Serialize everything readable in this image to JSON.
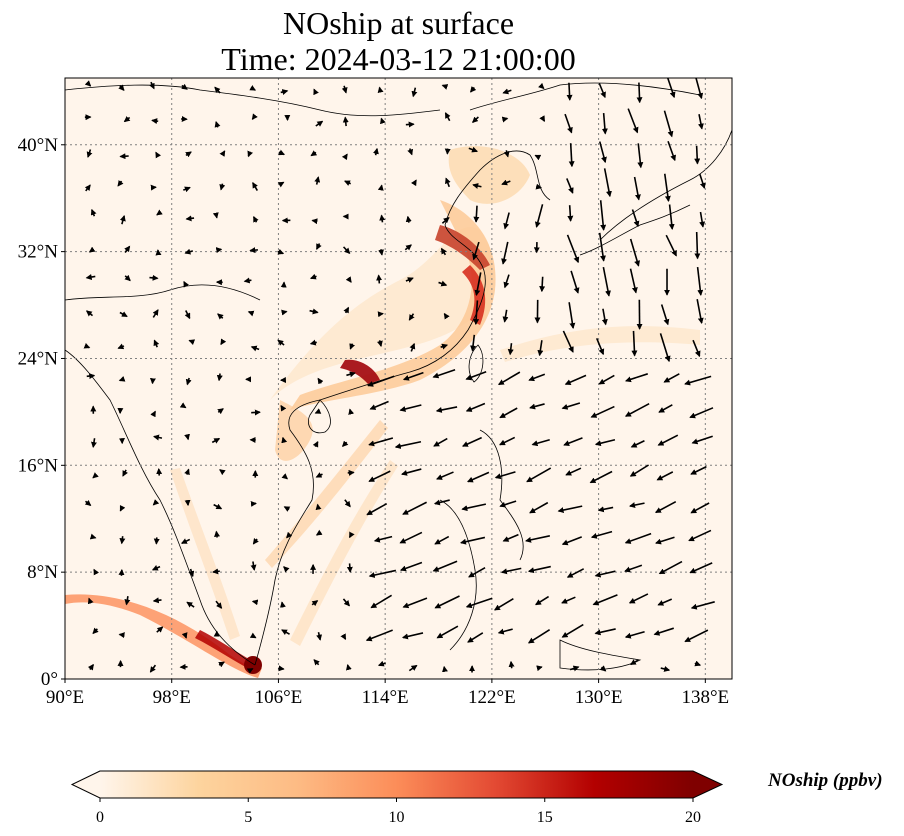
{
  "title": {
    "line1": "NOship at surface",
    "line2": "Time: 2024-03-12 21:00:00"
  },
  "map": {
    "lon_range": [
      90,
      140
    ],
    "lat_range": [
      0,
      45
    ],
    "lon_ticks": [
      {
        "value": 90,
        "label": "90°E"
      },
      {
        "value": 98,
        "label": "98°E"
      },
      {
        "value": 106,
        "label": "106°E"
      },
      {
        "value": 114,
        "label": "114°E"
      },
      {
        "value": 122,
        "label": "122°E"
      },
      {
        "value": 130,
        "label": "130°E"
      },
      {
        "value": 138,
        "label": "138°E"
      }
    ],
    "lat_ticks": [
      {
        "value": 0,
        "label": "0°"
      },
      {
        "value": 8,
        "label": "8°N"
      },
      {
        "value": 16,
        "label": "16°N"
      },
      {
        "value": 24,
        "label": "24°N"
      },
      {
        "value": 32,
        "label": "32°N"
      },
      {
        "value": 40,
        "label": "40°N"
      }
    ],
    "gridlines": true,
    "background_color": "#fff5eb",
    "coastline_color": "#000000"
  },
  "colorbar": {
    "label": "NOship (ppbv)",
    "min": 0,
    "max": 20,
    "extend": "both",
    "ticks": [
      0,
      5,
      10,
      15,
      20
    ],
    "colormap": "OrRd",
    "colors": [
      "#fff5eb",
      "#fdd49e",
      "#fdbb84",
      "#fc8d59",
      "#e34a33",
      "#b30000",
      "#7f0000"
    ]
  }
}
